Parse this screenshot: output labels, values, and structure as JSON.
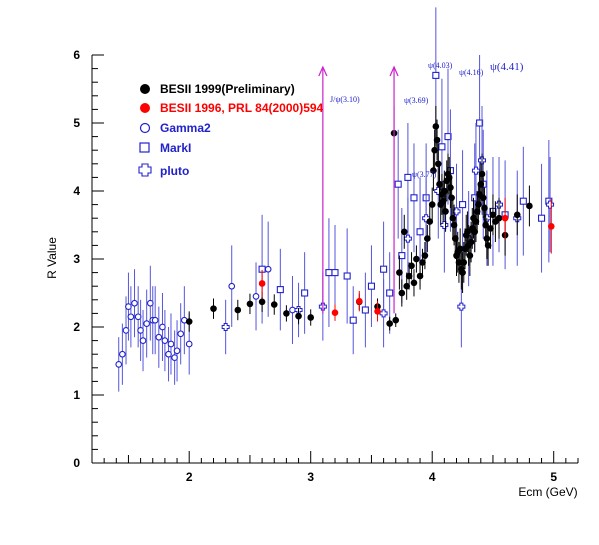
{
  "chart_data": {
    "type": "scatter",
    "xlabel": "Ecm (GeV)",
    "ylabel": "R Value",
    "xlim": [
      1.2,
      5.2
    ],
    "ylim": [
      0,
      6
    ],
    "xticks": [
      "2",
      "3",
      "4",
      "5"
    ],
    "yticks": [
      "0",
      "1",
      "2",
      "3",
      "4",
      "5",
      "6"
    ],
    "grid": false,
    "legend_position": "top-left",
    "series": [
      {
        "name": "BESII 1999(Preliminary)",
        "marker": "filled-circle",
        "color": "#000000",
        "points": [
          [
            2.0,
            2.08,
            0.15
          ],
          [
            2.2,
            2.27,
            0.15
          ],
          [
            2.4,
            2.25,
            0.15
          ],
          [
            2.5,
            2.34,
            0.15
          ],
          [
            2.6,
            2.37,
            0.15
          ],
          [
            2.7,
            2.33,
            0.15
          ],
          [
            2.8,
            2.2,
            0.12
          ],
          [
            2.9,
            2.16,
            0.12
          ],
          [
            3.0,
            2.14,
            0.12
          ],
          [
            3.4,
            2.37,
            0.12
          ],
          [
            3.55,
            2.3,
            0.12
          ],
          [
            3.65,
            2.05,
            0.1
          ],
          [
            3.686,
            4.85,
            0.4
          ],
          [
            3.7,
            2.1,
            0.1
          ],
          [
            3.73,
            2.8,
            0.25
          ],
          [
            3.75,
            2.5,
            0.2
          ],
          [
            3.77,
            3.4,
            0.25
          ],
          [
            3.79,
            2.6,
            0.2
          ],
          [
            3.81,
            2.75,
            0.2
          ],
          [
            3.83,
            2.9,
            0.2
          ],
          [
            3.85,
            2.65,
            0.2
          ],
          [
            3.87,
            3.0,
            0.2
          ],
          [
            3.9,
            2.75,
            0.2
          ],
          [
            3.92,
            2.95,
            0.2
          ],
          [
            3.94,
            3.05,
            0.2
          ],
          [
            3.96,
            3.3,
            0.2
          ],
          [
            3.98,
            3.55,
            0.25
          ],
          [
            4.0,
            3.8,
            0.25
          ],
          [
            4.01,
            4.3,
            0.3
          ],
          [
            4.02,
            4.6,
            0.3
          ],
          [
            4.03,
            4.95,
            0.3
          ],
          [
            4.04,
            4.75,
            0.3
          ],
          [
            4.05,
            4.4,
            0.3
          ],
          [
            4.06,
            4.1,
            0.3
          ],
          [
            4.07,
            3.8,
            0.3
          ],
          [
            4.08,
            3.95,
            0.3
          ],
          [
            4.09,
            3.85,
            0.3
          ],
          [
            4.1,
            4.0,
            0.3
          ],
          [
            4.11,
            3.7,
            0.3
          ],
          [
            4.12,
            4.15,
            0.3
          ],
          [
            4.13,
            4.25,
            0.3
          ],
          [
            4.14,
            4.2,
            0.3
          ],
          [
            4.15,
            4.05,
            0.3
          ],
          [
            4.16,
            3.9,
            0.3
          ],
          [
            4.17,
            3.6,
            0.3
          ],
          [
            4.18,
            3.5,
            0.3
          ],
          [
            4.19,
            3.3,
            0.3
          ],
          [
            4.2,
            3.05,
            0.3
          ],
          [
            4.21,
            3.1,
            0.3
          ],
          [
            4.22,
            2.95,
            0.3
          ],
          [
            4.23,
            3.15,
            0.3
          ],
          [
            4.24,
            2.85,
            0.3
          ],
          [
            4.25,
            2.8,
            0.3
          ],
          [
            4.26,
            2.95,
            0.3
          ],
          [
            4.27,
            3.15,
            0.3
          ],
          [
            4.28,
            3.35,
            0.3
          ],
          [
            4.29,
            3.4,
            0.3
          ],
          [
            4.3,
            3.2,
            0.3
          ],
          [
            4.31,
            3.05,
            0.3
          ],
          [
            4.32,
            3.25,
            0.3
          ],
          [
            4.33,
            3.45,
            0.3
          ],
          [
            4.34,
            3.6,
            0.3
          ],
          [
            4.35,
            3.4,
            0.3
          ],
          [
            4.36,
            3.55,
            0.3
          ],
          [
            4.37,
            3.7,
            0.3
          ],
          [
            4.38,
            3.8,
            0.3
          ],
          [
            4.39,
            3.95,
            0.3
          ],
          [
            4.4,
            4.1,
            0.3
          ],
          [
            4.41,
            4.25,
            0.3
          ],
          [
            4.42,
            3.9,
            0.3
          ],
          [
            4.43,
            3.75,
            0.3
          ],
          [
            4.44,
            3.5,
            0.3
          ],
          [
            4.45,
            3.3,
            0.3
          ],
          [
            4.46,
            3.2,
            0.3
          ],
          [
            4.48,
            3.45,
            0.3
          ],
          [
            4.5,
            3.65,
            0.3
          ],
          [
            4.52,
            3.55,
            0.3
          ],
          [
            4.55,
            3.6,
            0.3
          ],
          [
            4.6,
            3.35,
            0.3
          ],
          [
            4.7,
            3.65,
            0.3
          ],
          [
            4.8,
            3.78,
            0.3
          ]
        ]
      },
      {
        "name": "BESII 1996, PRL 84(2000)594",
        "marker": "filled-circle",
        "color": "#ff0000",
        "points": [
          [
            2.6,
            2.64,
            0.2
          ],
          [
            3.2,
            2.21,
            0.12
          ],
          [
            3.4,
            2.38,
            0.15
          ],
          [
            3.55,
            2.23,
            0.15
          ],
          [
            4.6,
            3.6,
            0.3
          ],
          [
            4.98,
            3.48,
            0.4
          ]
        ]
      },
      {
        "name": "Gamma2",
        "marker": "open-circle",
        "color": "#2222cc",
        "points": [
          [
            1.42,
            1.45,
            0.4
          ],
          [
            1.45,
            1.6,
            0.45
          ],
          [
            1.48,
            1.95,
            0.5
          ],
          [
            1.5,
            2.3,
            0.5
          ],
          [
            1.52,
            2.15,
            0.45
          ],
          [
            1.55,
            2.35,
            0.5
          ],
          [
            1.58,
            2.15,
            0.45
          ],
          [
            1.6,
            1.95,
            0.45
          ],
          [
            1.62,
            1.8,
            0.45
          ],
          [
            1.65,
            2.05,
            0.5
          ],
          [
            1.68,
            2.35,
            0.55
          ],
          [
            1.7,
            2.1,
            0.5
          ],
          [
            1.72,
            2.1,
            0.5
          ],
          [
            1.75,
            1.85,
            0.45
          ],
          [
            1.78,
            2.0,
            0.5
          ],
          [
            1.8,
            1.8,
            0.45
          ],
          [
            1.83,
            1.6,
            0.4
          ],
          [
            1.85,
            1.75,
            0.45
          ],
          [
            1.88,
            1.55,
            0.4
          ],
          [
            1.9,
            1.65,
            0.45
          ],
          [
            1.93,
            1.9,
            0.45
          ],
          [
            1.96,
            2.1,
            0.5
          ],
          [
            2.0,
            1.75,
            0.45
          ],
          [
            2.35,
            2.6,
            0.6
          ],
          [
            2.55,
            2.45,
            0.5
          ],
          [
            2.65,
            2.85,
            0.7
          ],
          [
            2.85,
            2.25,
            0.5
          ]
        ]
      },
      {
        "name": "MarkI",
        "marker": "open-square",
        "color": "#2222cc",
        "points": [
          [
            2.6,
            2.85,
            0.8
          ],
          [
            2.75,
            2.55,
            0.6
          ],
          [
            2.95,
            2.5,
            0.6
          ],
          [
            3.15,
            2.8,
            0.8
          ],
          [
            3.2,
            2.8,
            0.7
          ],
          [
            3.3,
            2.75,
            0.7
          ],
          [
            3.35,
            2.1,
            0.5
          ],
          [
            3.45,
            2.25,
            0.55
          ],
          [
            3.5,
            2.6,
            0.6
          ],
          [
            3.6,
            2.85,
            0.7
          ],
          [
            3.65,
            2.5,
            0.6
          ],
          [
            3.72,
            4.1,
            0.8
          ],
          [
            3.75,
            3.05,
            0.7
          ],
          [
            3.8,
            4.2,
            0.8
          ],
          [
            3.85,
            3.9,
            0.8
          ],
          [
            3.9,
            3.4,
            0.8
          ],
          [
            3.95,
            3.9,
            0.8
          ],
          [
            4.03,
            5.7,
            1.0
          ],
          [
            4.08,
            4.65,
            1.0
          ],
          [
            4.13,
            4.8,
            1.0
          ],
          [
            4.15,
            4.3,
            0.9
          ],
          [
            4.25,
            3.8,
            0.8
          ],
          [
            4.35,
            3.9,
            0.8
          ],
          [
            4.39,
            5.0,
            1.0
          ],
          [
            4.42,
            4.1,
            0.8
          ],
          [
            4.5,
            3.7,
            0.8
          ],
          [
            4.6,
            3.65,
            0.8
          ],
          [
            4.75,
            3.85,
            0.8
          ],
          [
            4.9,
            3.6,
            0.8
          ],
          [
            4.96,
            3.85,
            0.9
          ]
        ]
      },
      {
        "name": "pluto",
        "marker": "open-cross",
        "color": "#2222cc",
        "points": [
          [
            2.3,
            2.0,
            0.4
          ],
          [
            2.9,
            2.25,
            0.4
          ],
          [
            3.1,
            2.3,
            0.5
          ],
          [
            3.6,
            2.2,
            0.5
          ],
          [
            3.8,
            3.3,
            0.6
          ],
          [
            3.95,
            3.6,
            0.6
          ],
          [
            4.05,
            4.0,
            0.7
          ],
          [
            4.1,
            3.5,
            0.7
          ],
          [
            4.2,
            3.7,
            0.7
          ],
          [
            4.24,
            2.3,
            0.6
          ],
          [
            4.3,
            3.3,
            0.7
          ],
          [
            4.36,
            4.3,
            0.7
          ],
          [
            4.41,
            4.45,
            0.8
          ],
          [
            4.45,
            3.6,
            0.7
          ],
          [
            4.55,
            3.8,
            0.7
          ],
          [
            4.7,
            3.6,
            0.7
          ],
          [
            4.97,
            3.8,
            0.7
          ]
        ]
      }
    ],
    "resonances": [
      {
        "label": "J/ψ(3.10)",
        "x": 3.1,
        "size": "small"
      },
      {
        "label": "ψ(3.69)",
        "x": 3.686,
        "size": "small"
      },
      {
        "label": "ψ(3.77)",
        "x": 3.77,
        "size": "small"
      },
      {
        "label": "ψ(4.03)",
        "x": 4.03,
        "size": "small"
      },
      {
        "label": "ψ(4.16)",
        "x": 4.16,
        "size": "small"
      },
      {
        "label": "ψ(4.41)",
        "x": 4.41,
        "size": "big"
      }
    ],
    "resonance_arrows": [
      {
        "x": 3.1,
        "y_from": 2.2
      },
      {
        "x": 3.686,
        "y_from": 2.2
      }
    ],
    "colors": {
      "axis": "#000000",
      "arrow": "#cc22cc",
      "besii1999": "#000000",
      "besii1996": "#ff0000",
      "other": "#2222cc"
    }
  }
}
